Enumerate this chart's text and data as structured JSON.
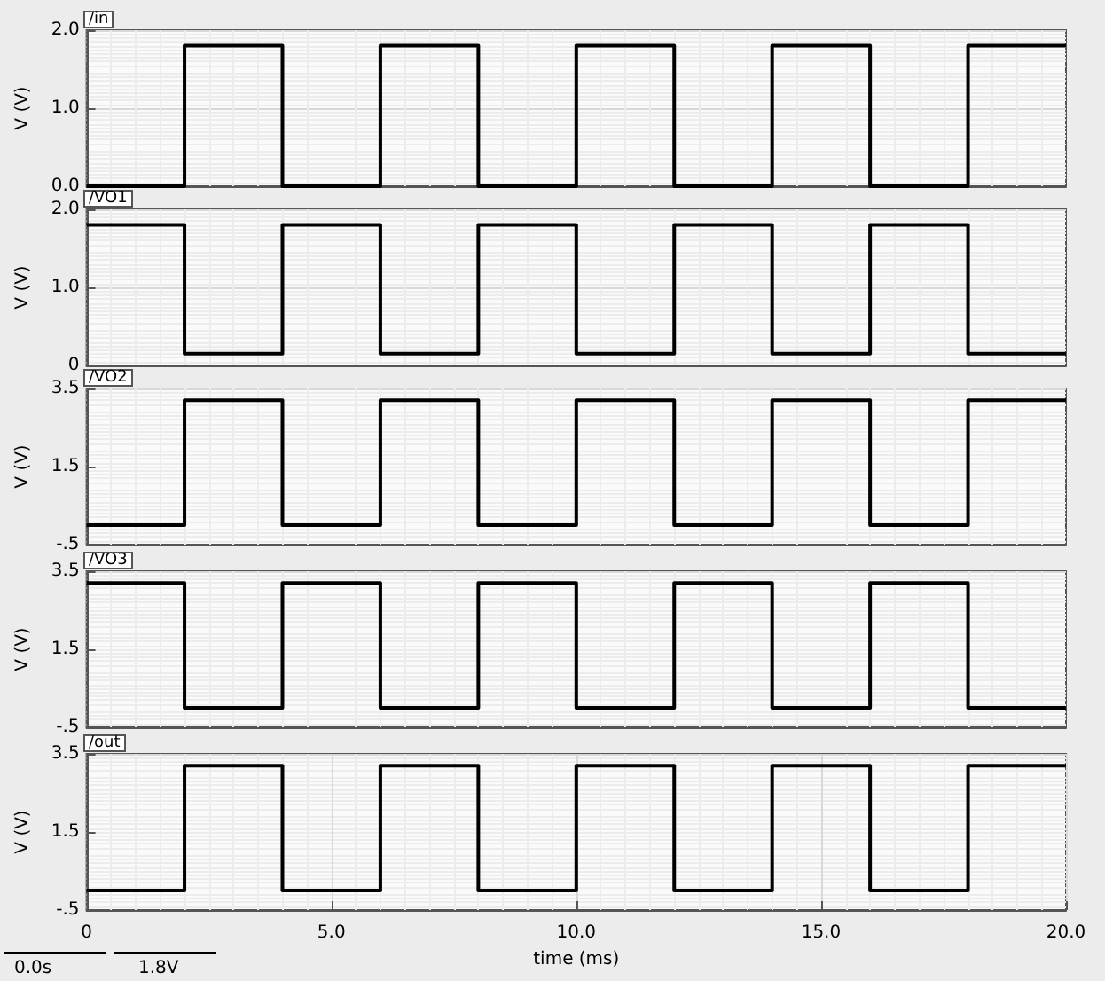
{
  "chart_data": [
    {
      "type": "step",
      "title": "/in",
      "ylabel": "V (V)",
      "x": [
        0,
        2,
        4,
        6,
        8,
        10,
        12,
        14,
        16,
        18,
        20
      ],
      "xlim": [
        0,
        20
      ],
      "ylim": [
        0,
        2
      ],
      "yticks": [
        {
          "value": 0,
          "label": "0.0"
        },
        {
          "value": 1,
          "label": "1.0"
        },
        {
          "value": 2,
          "label": "2.0"
        }
      ],
      "series": [
        {
          "color": "#000000",
          "values": [
            0,
            1.8,
            0,
            1.8,
            0,
            1.8,
            0,
            1.8,
            0,
            1.8,
            1.8
          ]
        }
      ],
      "grid": true,
      "tick_labels": "y"
    },
    {
      "type": "step",
      "title": "/VO1",
      "ylabel": "V (V)",
      "x": [
        0,
        2,
        4,
        6,
        8,
        10,
        12,
        14,
        16,
        18,
        20
      ],
      "xlim": [
        0,
        20
      ],
      "ylim": [
        0,
        2
      ],
      "yticks": [
        0,
        {
          "value": 1,
          "label": "1.0"
        },
        {
          "value": 2,
          "label": "2.0"
        }
      ],
      "series": [
        {
          "color": "#000000",
          "values": [
            1.8,
            0.15,
            1.8,
            0.15,
            1.8,
            0.15,
            1.8,
            0.15,
            1.8,
            0.15,
            0.15
          ]
        }
      ],
      "grid": true,
      "tick_labels": "y"
    },
    {
      "type": "step",
      "title": "/VO2",
      "ylabel": "V (V)",
      "x": [
        0,
        2,
        4,
        6,
        8,
        10,
        12,
        14,
        16,
        18,
        20
      ],
      "xlim": [
        0,
        20
      ],
      "ylim": [
        -0.5,
        3.5
      ],
      "yticks": [
        {
          "value": -0.5,
          "label": "-.5"
        },
        {
          "value": 1.5,
          "label": "1.5"
        },
        {
          "value": 3.5,
          "label": "3.5"
        }
      ],
      "series": [
        {
          "color": "#000000",
          "values": [
            0,
            3.2,
            0,
            3.2,
            0,
            3.2,
            0,
            3.2,
            0,
            3.2,
            3.2
          ]
        }
      ],
      "grid": true,
      "tick_labels": "y"
    },
    {
      "type": "step",
      "title": "/VO3",
      "ylabel": "V (V)",
      "x": [
        0,
        2,
        4,
        6,
        8,
        10,
        12,
        14,
        16,
        18,
        20
      ],
      "xlim": [
        0,
        20
      ],
      "ylim": [
        -0.5,
        3.5
      ],
      "yticks": [
        {
          "value": -0.5,
          "label": "-.5"
        },
        {
          "value": 1.5,
          "label": "1.5"
        },
        {
          "value": 3.5,
          "label": "3.5"
        }
      ],
      "series": [
        {
          "color": "#000000",
          "values": [
            3.2,
            0,
            3.2,
            0,
            3.2,
            0,
            3.2,
            0,
            3.2,
            0,
            0
          ]
        }
      ],
      "grid": true,
      "tick_labels": "y"
    },
    {
      "type": "step",
      "title": "/out",
      "ylabel": "V (V)",
      "xlabel": "time (ms)",
      "x": [
        0,
        2,
        4,
        6,
        8,
        10,
        12,
        14,
        16,
        18,
        20
      ],
      "xlim": [
        0,
        20
      ],
      "xticks": [
        0,
        {
          "value": 5,
          "label": "5.0"
        },
        {
          "value": 10,
          "label": "10.0"
        },
        {
          "value": 15,
          "label": "15.0"
        },
        {
          "value": 20,
          "label": "20.0"
        }
      ],
      "ylim": [
        -0.5,
        3.5
      ],
      "yticks": [
        {
          "value": -0.5,
          "label": "-.5"
        },
        {
          "value": 1.5,
          "label": "1.5"
        },
        {
          "value": 3.5,
          "label": "3.5"
        }
      ],
      "series": [
        {
          "color": "#000000",
          "values": [
            0,
            3.2,
            0,
            3.2,
            0,
            3.2,
            0,
            3.2,
            0,
            3.2,
            3.2
          ]
        }
      ],
      "grid": true,
      "annotations": [
        "0.0s",
        "1.8V"
      ]
    }
  ]
}
